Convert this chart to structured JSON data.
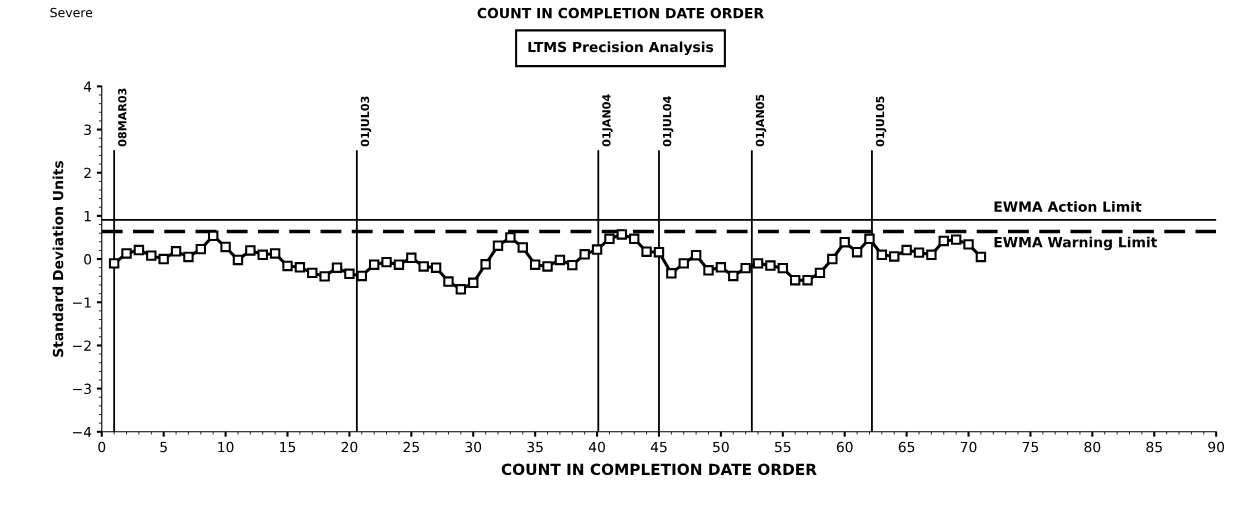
{
  "chart_data": {
    "type": "line",
    "title": "COUNT IN COMPLETION DATE ORDER",
    "subtitle": "LTMS Precision Analysis",
    "annotations": [
      "Severe"
    ],
    "xlabel": "COUNT IN COMPLETION DATE ORDER",
    "ylabel": "Standard Deviation Units",
    "x": [
      1,
      2,
      3,
      4,
      5,
      6,
      7,
      8,
      9,
      10,
      11,
      12,
      13,
      14,
      15,
      16,
      17,
      18,
      19,
      20,
      21,
      22,
      23,
      24,
      25,
      26,
      27,
      28,
      29,
      30,
      31,
      32,
      33,
      34,
      35,
      36,
      37,
      38,
      39,
      40,
      41,
      42,
      43,
      44,
      45,
      46,
      47,
      48,
      49,
      50,
      51,
      52,
      53,
      54,
      55,
      56,
      57,
      58,
      59,
      60,
      61,
      62,
      63,
      64,
      65,
      66,
      67,
      68,
      69,
      70,
      71
    ],
    "series": [
      {
        "color": "#000000",
        "values": [
          -0.1,
          0.13,
          0.21,
          0.08,
          0.0,
          0.18,
          0.05,
          0.23,
          0.54,
          0.28,
          -0.02,
          0.2,
          0.1,
          0.13,
          -0.16,
          -0.19,
          -0.32,
          -0.4,
          -0.2,
          -0.34,
          -0.39,
          -0.13,
          -0.07,
          -0.13,
          0.03,
          -0.17,
          -0.2,
          -0.52,
          -0.7,
          -0.55,
          -0.12,
          0.31,
          0.5,
          0.27,
          -0.13,
          -0.17,
          -0.02,
          -0.14,
          0.11,
          0.22,
          0.47,
          0.57,
          0.47,
          0.17,
          0.16,
          -0.33,
          -0.1,
          0.09,
          -0.26,
          -0.19,
          -0.39,
          -0.21,
          -0.1,
          -0.15,
          -0.21,
          -0.49,
          -0.49,
          -0.32,
          0.0,
          0.39,
          0.16,
          0.47,
          0.1,
          0.06,
          0.21,
          0.15,
          0.1,
          0.42,
          0.45,
          0.34,
          0.05
        ]
      }
    ],
    "marker": "square",
    "line_style": "solid",
    "grid": false,
    "xlim": [
      0,
      90
    ],
    "xticks": [
      0,
      5,
      10,
      15,
      20,
      25,
      30,
      35,
      40,
      45,
      50,
      55,
      60,
      65,
      70,
      75,
      80,
      85,
      90
    ],
    "ylim": [
      -4,
      4
    ],
    "yticks": [
      {
        "value": -4,
        "label": "−4"
      },
      {
        "value": -3,
        "label": "−3"
      },
      {
        "value": -2,
        "label": "−2"
      },
      {
        "value": -1,
        "label": "−1"
      },
      0,
      1,
      2,
      3,
      4
    ],
    "ref_lines": [
      {
        "axis": "y",
        "value": 0.91,
        "label": "EWMA Action Limit",
        "color": "#000000",
        "line_style": "solid"
      },
      {
        "axis": "y",
        "value": 0.64,
        "label": "EWMA Warning Limit",
        "color": "#000000",
        "line_style": "dashed"
      },
      {
        "axis": "x",
        "value": 1.0,
        "label": "08MAR03",
        "color": "#000000",
        "line_style": "solid"
      },
      {
        "axis": "x",
        "value": 20.6,
        "label": "01JUL03",
        "color": "#000000",
        "line_style": "solid"
      },
      {
        "axis": "x",
        "value": 40.1,
        "label": "01JAN04",
        "color": "#000000",
        "line_style": "solid"
      },
      {
        "axis": "x",
        "value": 45.0,
        "label": "01JUL04",
        "color": "#000000",
        "line_style": "solid"
      },
      {
        "axis": "x",
        "value": 52.5,
        "label": "01JAN05",
        "color": "#000000",
        "line_style": "solid"
      },
      {
        "axis": "x",
        "value": 62.2,
        "label": "01JUL05",
        "color": "#000000",
        "line_style": "solid"
      }
    ]
  }
}
